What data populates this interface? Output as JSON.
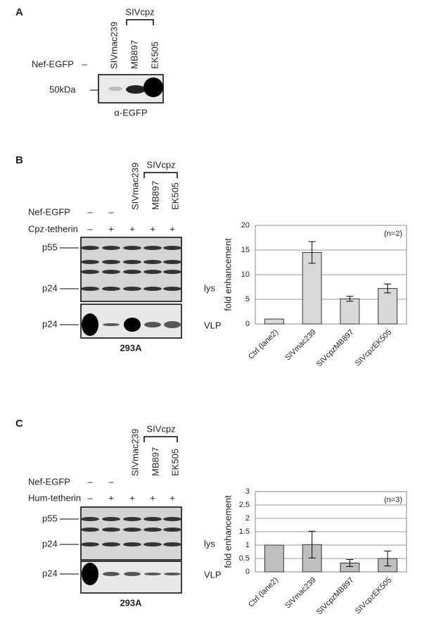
{
  "panel_a": {
    "label": "A",
    "group": "SIVcpz",
    "lanes": [
      "SIVmac239",
      "MB897",
      "EK505"
    ],
    "row": "Nef-EGFP",
    "row_mark": "–",
    "marker": "50kDa",
    "antibody": "α-EGFP"
  },
  "panel_b": {
    "label": "B",
    "group": "SIVcpz",
    "lanes": [
      "SIVmac239",
      "MB897",
      "EK505"
    ],
    "rows": [
      {
        "name": "Nef-EGFP",
        "marks": [
          "–",
          "–"
        ]
      },
      {
        "name": "Cpz-tetherin",
        "marks": [
          "–",
          "+",
          "+",
          "+",
          "+"
        ]
      }
    ],
    "bands": [
      "p55",
      "p24",
      "p24"
    ],
    "fractions": [
      "lys",
      "VLP"
    ],
    "cells": "293A"
  },
  "panel_c": {
    "label": "C",
    "group": "SIVcpz",
    "lanes": [
      "SIVmac239",
      "MB897",
      "EK505"
    ],
    "rows": [
      {
        "name": "Nef-EGFP",
        "marks": [
          "–",
          "–"
        ]
      },
      {
        "name": "Hum-tetherin",
        "marks": [
          "–",
          "+",
          "+",
          "+",
          "+"
        ]
      }
    ],
    "bands": [
      "p55",
      "p24",
      "p24"
    ],
    "fractions": [
      "lys",
      "VLP"
    ],
    "cells": "293A"
  },
  "chart_data": [
    {
      "type": "bar",
      "ylabel": "fold enhancement",
      "annotation": "(n=2)",
      "categories": [
        "Ctrl (lane2)",
        "SIVmac239",
        "SIVcpzMB897",
        "SIVcpzEK505"
      ],
      "values": [
        1,
        14.5,
        5.1,
        7.2
      ],
      "errors": [
        null,
        2.2,
        0.5,
        0.9
      ],
      "color": "#d9d9d9",
      "ylim": [
        0,
        20
      ],
      "yticks": [
        0,
        5,
        10,
        15,
        20
      ],
      "grid": true
    },
    {
      "type": "bar",
      "ylabel": "fold enhancement",
      "annotation": "(n=3)",
      "categories": [
        "Ctrl (lane2)",
        "SIVmac239",
        "SIVcpzMB897",
        "SIVcpzEK505"
      ],
      "values": [
        1,
        1.02,
        0.33,
        0.5
      ],
      "errors": [
        null,
        0.5,
        0.13,
        0.28
      ],
      "color": "#bfbfbf",
      "ylim": [
        0,
        3
      ],
      "yticks": [
        0,
        0.5,
        1,
        1.5,
        2,
        2.5,
        3
      ],
      "grid": true
    }
  ]
}
